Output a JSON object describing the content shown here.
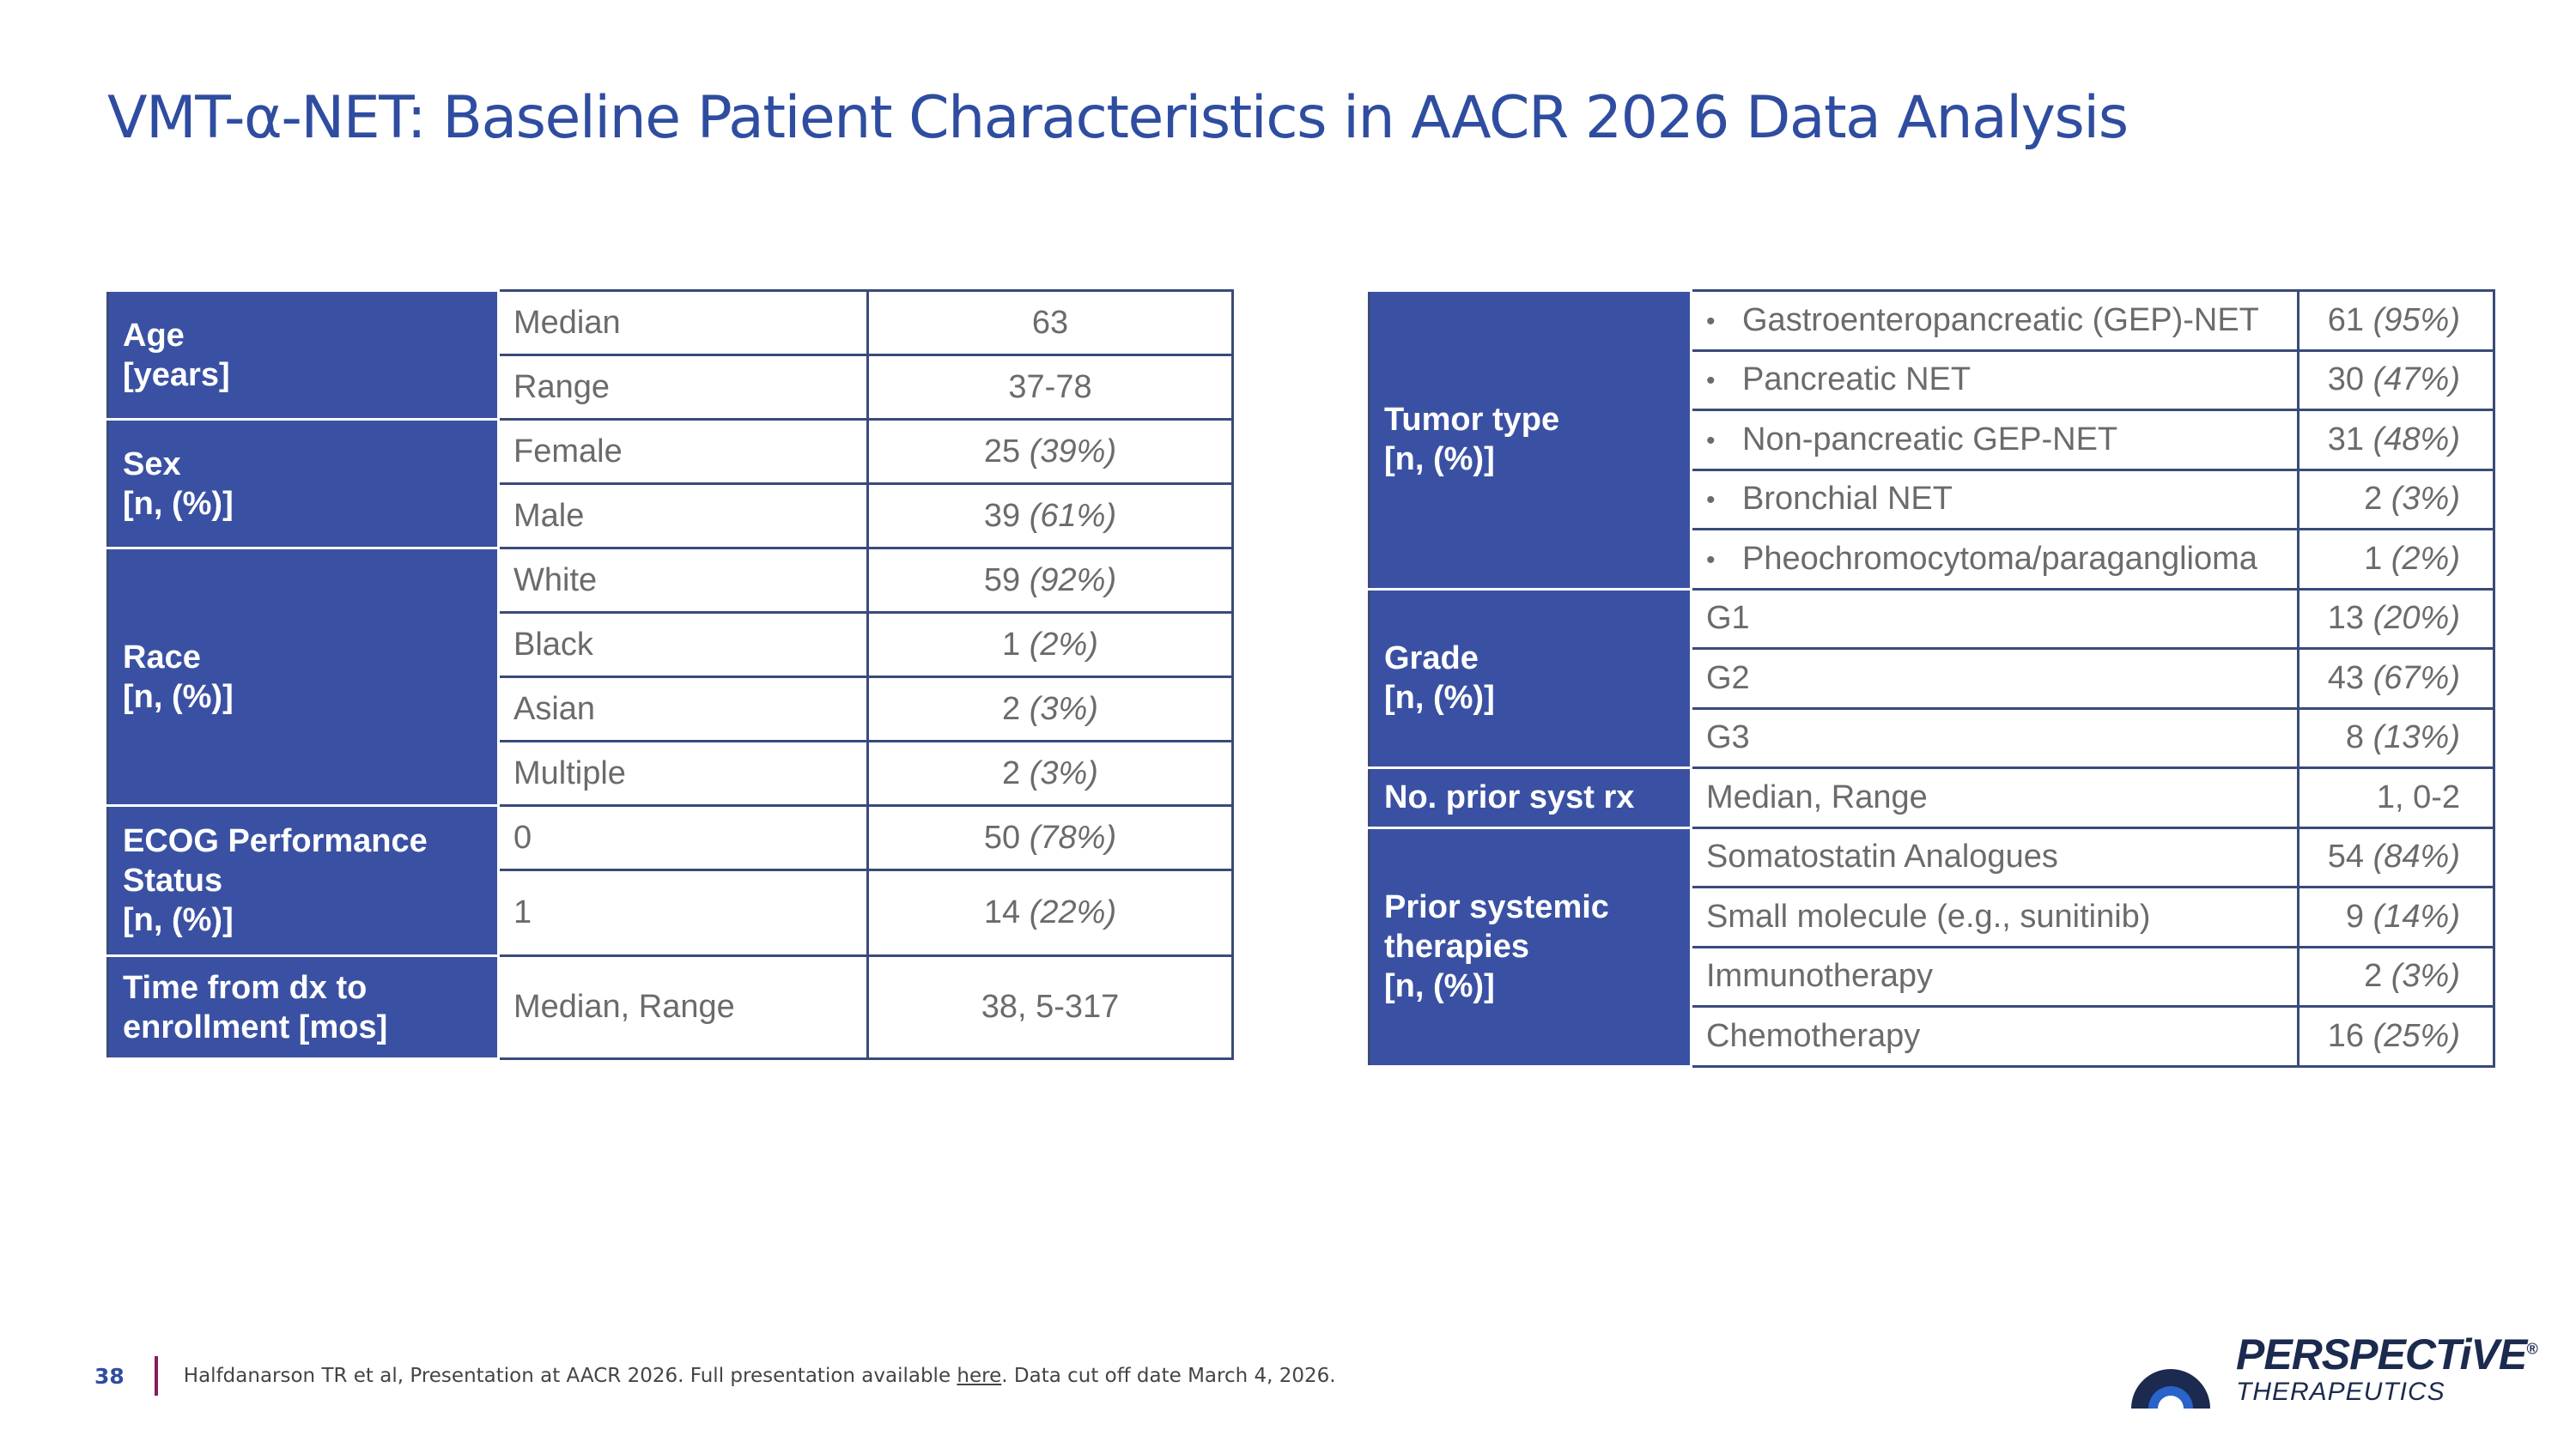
{
  "title": "VMT-α-NET: Baseline Patient Characteristics in AACR 2026 Data Analysis",
  "left_table": {
    "age": {
      "header": [
        "Age",
        "[years]"
      ],
      "rows": [
        {
          "label": "Median",
          "value": "63"
        },
        {
          "label": "Range",
          "value": "37-78"
        }
      ]
    },
    "sex": {
      "header": [
        "Sex",
        "[n, (%)]"
      ],
      "rows": [
        {
          "label": "Female",
          "value": "25",
          "pct": "(39%)"
        },
        {
          "label": "Male",
          "value": "39",
          "pct": "(61%)"
        }
      ]
    },
    "race": {
      "header": [
        "Race",
        "[n, (%)]"
      ],
      "rows": [
        {
          "label": "White",
          "value": "59",
          "pct": "(92%)"
        },
        {
          "label": "Black",
          "value": "1",
          "pct": "(2%)"
        },
        {
          "label": "Asian",
          "value": "2",
          "pct": "(3%)"
        },
        {
          "label": "Multiple",
          "value": "2",
          "pct": "(3%)"
        }
      ]
    },
    "ecog": {
      "header": [
        "ECOG Performance",
        "Status",
        "[n, (%)]"
      ],
      "rows": [
        {
          "label": "0",
          "value": "50",
          "pct": "(78%)"
        },
        {
          "label": "1",
          "value": "14",
          "pct": "(22%)"
        }
      ]
    },
    "time": {
      "header": [
        "Time from dx to",
        "enrollment [mos]"
      ],
      "rows": [
        {
          "label": "Median, Range",
          "value": "38, 5-317"
        }
      ]
    }
  },
  "right_table": {
    "tumor": {
      "header": [
        "Tumor type",
        "[n, (%)]"
      ],
      "rows": [
        {
          "label": "Gastroenteropancreatic (GEP)-NET",
          "value": "61",
          "pct": "(95%)"
        },
        {
          "label": "Pancreatic NET",
          "value": "30",
          "pct": "(47%)"
        },
        {
          "label": "Non-pancreatic GEP-NET",
          "value": "31",
          "pct": "(48%)"
        },
        {
          "label": "Bronchial NET",
          "value": "2",
          "pct": "(3%)"
        },
        {
          "label": "Pheochromocytoma/paraganglioma",
          "value": "1",
          "pct": "(2%)"
        }
      ]
    },
    "grade": {
      "header": [
        "Grade",
        "[n, (%)]"
      ],
      "rows": [
        {
          "label": "G1",
          "value": "13",
          "pct": "(20%)"
        },
        {
          "label": "G2",
          "value": "43",
          "pct": "(67%)"
        },
        {
          "label": "G3",
          "value": "8",
          "pct": "(13%)"
        }
      ]
    },
    "prior_rx": {
      "header": [
        "No. prior syst rx"
      ],
      "rows": [
        {
          "label": "Median, Range",
          "value": "1, 0-2"
        }
      ]
    },
    "prior_therapies": {
      "header": [
        "Prior systemic",
        "therapies",
        "[n, (%)]"
      ],
      "rows": [
        {
          "label": "Somatostatin Analogues",
          "value": "54",
          "pct": "(84%)"
        },
        {
          "label": "Small molecule (e.g., sunitinib)",
          "value": "9",
          "pct": "(14%)"
        },
        {
          "label": "Immunotherapy",
          "value": "2",
          "pct": "(3%)"
        },
        {
          "label": "Chemotherapy",
          "value": "16",
          "pct": "(25%)"
        }
      ]
    }
  },
  "footer": {
    "page_number": "38",
    "citation": "Halfdanarson TR et al, Presentation at AACR 2026. Full presentation available ",
    "link_text": "here",
    "citation_end": ". Data cut off date March 4, 2026."
  },
  "logo": {
    "name": "PERSPECTiVE",
    "registered": "®",
    "sub": "THERAPEUTICS"
  },
  "colors": {
    "title": "#2f4da0",
    "header_bg": "#3a51a3",
    "footer_divider": "#8b1a5a",
    "logo_blue": "#2a63c9"
  }
}
